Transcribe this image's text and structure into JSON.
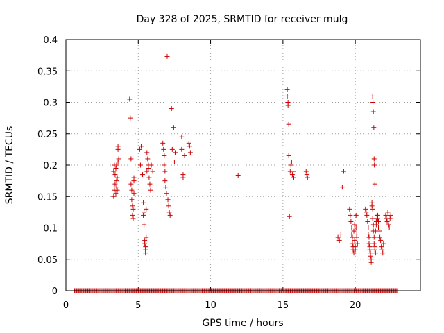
{
  "chart_data": {
    "type": "scatter",
    "title": "Day 328 of 2025, SRMTID for receiver mulg",
    "xlabel": "GPS time / hours",
    "ylabel": "SRMTID / TECUs",
    "xlim": [
      0,
      24.5
    ],
    "ylim": [
      0,
      0.4
    ],
    "grid": true,
    "marker": "plus",
    "color": "#cc0000",
    "xticks": [
      0,
      5,
      10,
      15,
      20
    ],
    "xtick_labels": [
      "0",
      "5",
      "10",
      "15",
      "20"
    ],
    "yticks": [
      0,
      0.05,
      0.1,
      0.15,
      0.2,
      0.25,
      0.3,
      0.35,
      0.4
    ],
    "ytick_labels": [
      "0",
      "0.05",
      "0.1",
      "0.15",
      "0.2",
      "0.25",
      "0.3",
      "0.35",
      "0.4"
    ],
    "series": [
      {
        "name": "SRMTID",
        "x": [
          3.3,
          3.3,
          3.35,
          3.35,
          3.4,
          3.4,
          3.45,
          3.45,
          3.5,
          3.5,
          3.5,
          3.55,
          3.55,
          3.6,
          3.6,
          3.6,
          3.65,
          4.4,
          4.45,
          4.5,
          4.5,
          4.55,
          4.55,
          4.6,
          4.6,
          4.65,
          4.65,
          4.7,
          4.7,
          4.7,
          5.1,
          5.15,
          5.2,
          5.3,
          5.35,
          5.35,
          5.4,
          5.4,
          5.45,
          5.45,
          5.5,
          5.5,
          5.5,
          5.55,
          5.55,
          5.6,
          5.6,
          5.65,
          5.7,
          5.7,
          5.75,
          5.8,
          5.85,
          5.9,
          6.0,
          6.7,
          6.75,
          6.8,
          6.8,
          6.85,
          6.85,
          6.9,
          6.95,
          7.0,
          7.05,
          7.1,
          7.15,
          7.2,
          7.3,
          7.35,
          7.45,
          7.5,
          7.55,
          8.0,
          8.0,
          8.1,
          8.1,
          8.2,
          8.5,
          8.55,
          8.6,
          11.9,
          15.3,
          15.3,
          15.35,
          15.35,
          15.4,
          15.4,
          15.45,
          15.5,
          15.55,
          15.6,
          15.65,
          15.7,
          15.75,
          16.6,
          16.65,
          16.7,
          18.8,
          18.9,
          19.0,
          19.1,
          19.2,
          19.6,
          19.65,
          19.7,
          19.75,
          19.75,
          19.8,
          19.8,
          19.85,
          19.85,
          19.9,
          19.9,
          19.95,
          19.95,
          20.0,
          20.0,
          20.05,
          20.05,
          20.1,
          20.1,
          20.15,
          20.7,
          20.75,
          20.8,
          20.85,
          20.9,
          20.9,
          20.95,
          20.95,
          21.0,
          21.0,
          21.05,
          21.05,
          21.1,
          21.1,
          21.15,
          21.15,
          21.2,
          21.2,
          21.25,
          21.25,
          21.3,
          21.3,
          21.35,
          21.35,
          21.4,
          21.4,
          21.45,
          21.45,
          21.5,
          21.5,
          21.55,
          21.55,
          21.6,
          21.6,
          21.65,
          21.7,
          21.75,
          21.8,
          21.85,
          21.9,
          21.95,
          21.2,
          21.22,
          21.25,
          21.28,
          21.3,
          21.32,
          21.35,
          22.1,
          22.15,
          22.2,
          22.25,
          22.3,
          22.35,
          22.4,
          22.45
        ],
        "y": [
          0.15,
          0.19,
          0.16,
          0.2,
          0.17,
          0.185,
          0.155,
          0.195,
          0.165,
          0.175,
          0.2,
          0.18,
          0.16,
          0.23,
          0.225,
          0.205,
          0.21,
          0.305,
          0.275,
          0.21,
          0.17,
          0.16,
          0.145,
          0.135,
          0.12,
          0.115,
          0.13,
          0.18,
          0.175,
          0.155,
          0.225,
          0.2,
          0.23,
          0.185,
          0.14,
          0.12,
          0.105,
          0.125,
          0.08,
          0.075,
          0.07,
          0.065,
          0.06,
          0.085,
          0.13,
          0.19,
          0.22,
          0.21,
          0.2,
          0.195,
          0.18,
          0.17,
          0.16,
          0.2,
          0.19,
          0.235,
          0.225,
          0.215,
          0.2,
          0.19,
          0.175,
          0.165,
          0.155,
          0.373,
          0.145,
          0.135,
          0.125,
          0.12,
          0.29,
          0.225,
          0.26,
          0.205,
          0.22,
          0.245,
          0.225,
          0.185,
          0.18,
          0.215,
          0.235,
          0.23,
          0.22,
          0.184,
          0.32,
          0.31,
          0.3,
          0.295,
          0.265,
          0.215,
          0.118,
          0.19,
          0.2,
          0.205,
          0.185,
          0.19,
          0.18,
          0.19,
          0.185,
          0.18,
          0.085,
          0.08,
          0.09,
          0.165,
          0.19,
          0.13,
          0.12,
          0.11,
          0.1,
          0.09,
          0.085,
          0.075,
          0.07,
          0.065,
          0.06,
          0.095,
          0.105,
          0.08,
          0.07,
          0.065,
          0.12,
          0.1,
          0.09,
          0.085,
          0.075,
          0.13,
          0.125,
          0.12,
          0.11,
          0.1,
          0.09,
          0.085,
          0.075,
          0.07,
          0.065,
          0.06,
          0.055,
          0.05,
          0.045,
          0.14,
          0.135,
          0.13,
          0.115,
          0.105,
          0.095,
          0.085,
          0.075,
          0.07,
          0.065,
          0.06,
          0.095,
          0.105,
          0.11,
          0.115,
          0.12,
          0.12,
          0.115,
          0.11,
          0.1,
          0.095,
          0.085,
          0.08,
          0.07,
          0.065,
          0.06,
          0.075,
          0.31,
          0.3,
          0.285,
          0.26,
          0.21,
          0.2,
          0.17,
          0.12,
          0.115,
          0.11,
          0.125,
          0.105,
          0.1,
          0.115,
          0.12
        ],
        "zero_band_x_range": [
          0.6,
          23.0
        ]
      }
    ]
  }
}
